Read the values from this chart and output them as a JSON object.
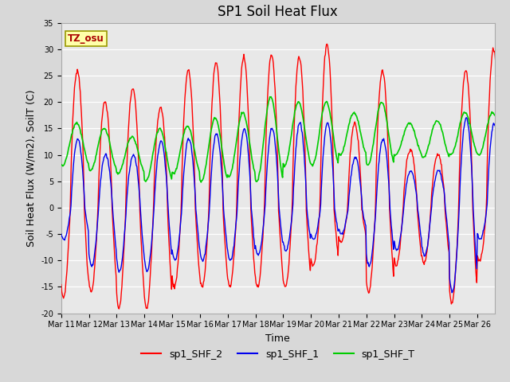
{
  "title": "SP1 Soil Heat Flux",
  "xlabel": "Time",
  "ylabel": "Soil Heat Flux (W/m2), SoilT (C)",
  "ylim": [
    -20,
    35
  ],
  "xlim": [
    0,
    375
  ],
  "background_color": "#d8d8d8",
  "plot_bg_color": "#e8e8e8",
  "grid_color": "white",
  "tz_label": "TZ_osu",
  "tz_box_facecolor": "#ffffaa",
  "tz_box_edgecolor": "#999900",
  "line_red": "#ff0000",
  "line_blue": "#0000ee",
  "line_green": "#00cc00",
  "legend_labels": [
    "sp1_SHF_2",
    "sp1_SHF_1",
    "sp1_SHF_T"
  ],
  "xtick_labels": [
    "Mar 11",
    "Mar 12",
    "Mar 13",
    "Mar 14",
    "Mar 15",
    "Mar 16",
    "Mar 17",
    "Mar 18",
    "Mar 19",
    "Mar 20",
    "Mar 21",
    "Mar 22",
    "Mar 23",
    "Mar 24",
    "Mar 25",
    "Mar 26"
  ],
  "xtick_positions": [
    0,
    24,
    48,
    72,
    96,
    120,
    144,
    168,
    192,
    216,
    240,
    264,
    288,
    312,
    336,
    360
  ],
  "ytick_labels": [
    "-20",
    "-15",
    "-10",
    "-5",
    "0",
    "5",
    "10",
    "15",
    "20",
    "25",
    "30",
    "35"
  ],
  "ytick_positions": [
    -20,
    -15,
    -10,
    -5,
    0,
    5,
    10,
    15,
    20,
    25,
    30,
    35
  ],
  "n_points": 375,
  "samples_per_day": 24,
  "title_fontsize": 12,
  "axis_label_fontsize": 9,
  "tick_fontsize": 7,
  "legend_fontsize": 9
}
